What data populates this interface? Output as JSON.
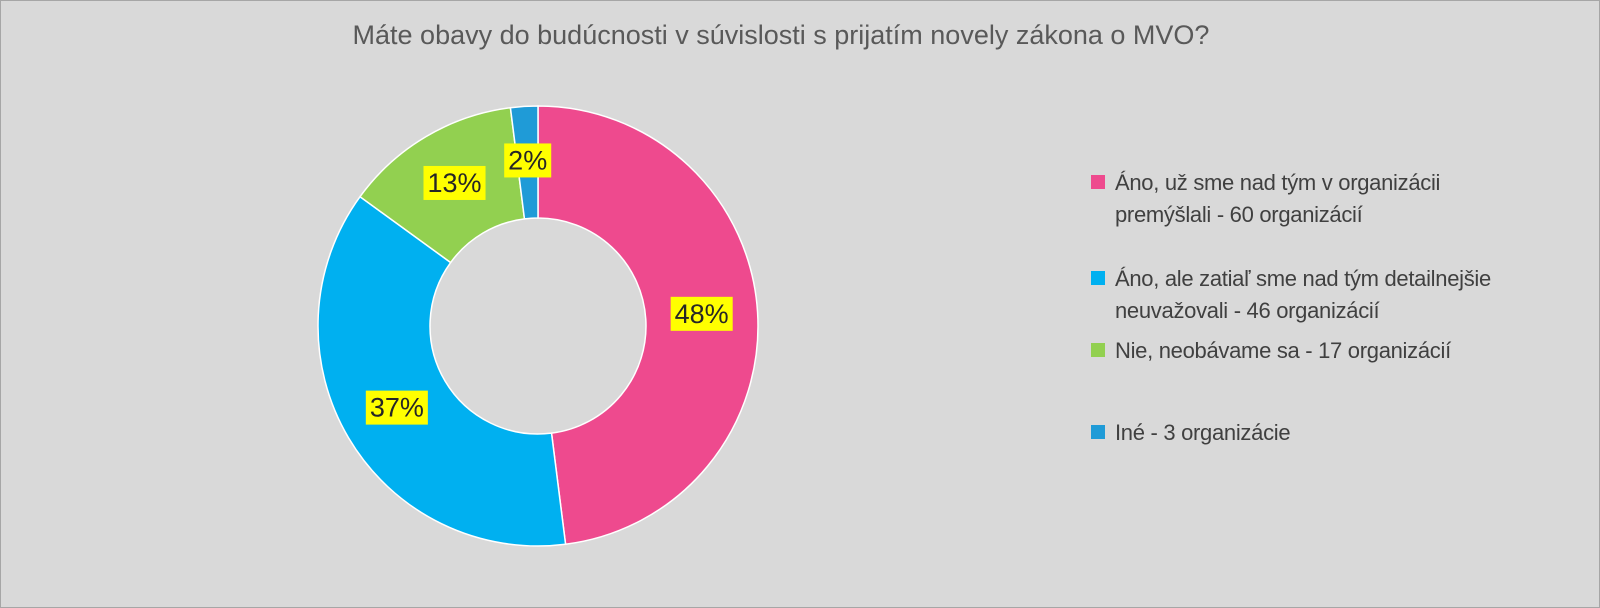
{
  "chart_data": {
    "type": "donut",
    "title": "Máte obavy do budúcnosti v súvislosti s prijatím novely zákona o MVO?",
    "categories": [
      "Áno, už sme nad tým v organizácii premýšlali - 60 organizácií",
      "Áno, ale zatiaľ sme nad tým detailnejšie neuvažovali - 46 organizácií",
      "Nie, neobávame sa - 17 organizácií",
      "Iné - 3 organizácie"
    ],
    "values": [
      48,
      37,
      13,
      2
    ],
    "value_labels": [
      "48%",
      "37%",
      "13%",
      "2%"
    ],
    "colors": [
      "#ee4a8e",
      "#00b0f0",
      "#92d050",
      "#1f9bd7"
    ]
  }
}
